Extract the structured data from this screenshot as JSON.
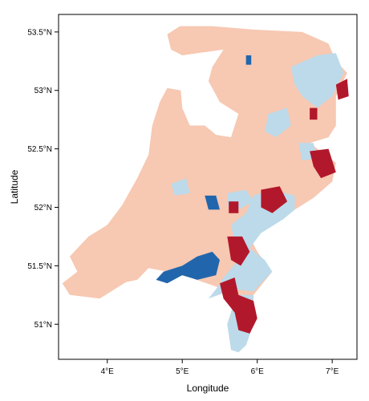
{
  "chart_data": {
    "type": "map",
    "xlabel": "Longitude",
    "ylabel": "Latitude",
    "xlim": [
      3.35,
      7.33
    ],
    "ylim": [
      50.7,
      53.65
    ],
    "x_ticks": [
      {
        "value": 4,
        "label": "4°E"
      },
      {
        "value": 5,
        "label": "5°E"
      },
      {
        "value": 6,
        "label": "6°E"
      },
      {
        "value": 7,
        "label": "7°E"
      }
    ],
    "y_ticks": [
      {
        "value": 51,
        "label": "51°N"
      },
      {
        "value": 51.5,
        "label": "51.5°N"
      },
      {
        "value": 52,
        "label": "52°N"
      },
      {
        "value": 52.5,
        "label": "52.5°N"
      },
      {
        "value": 53,
        "label": "53°N"
      },
      {
        "value": 53.5,
        "label": "53.5°N"
      }
    ],
    "grid": false,
    "legend": "none",
    "classes": [
      {
        "color": "#f7c8b2"
      },
      {
        "color": "#bcdaea"
      },
      {
        "color": "#2166ac"
      },
      {
        "color": "#b2182b"
      }
    ],
    "regions": [
      {
        "class": 0,
        "points": [
          [
            4.97,
            53.55
          ],
          [
            5.4,
            53.55
          ],
          [
            5.95,
            53.52
          ],
          [
            6.6,
            53.5
          ],
          [
            6.95,
            53.4
          ],
          [
            7.05,
            53.25
          ],
          [
            7.2,
            53.15
          ],
          [
            7.05,
            52.95
          ],
          [
            7.05,
            52.7
          ],
          [
            6.95,
            52.6
          ],
          [
            6.7,
            52.55
          ],
          [
            7.05,
            52.38
          ],
          [
            7.0,
            52.22
          ],
          [
            6.75,
            52.08
          ],
          [
            6.35,
            51.92
          ],
          [
            6.0,
            51.83
          ],
          [
            5.9,
            51.75
          ],
          [
            6.0,
            51.62
          ],
          [
            6.2,
            51.45
          ],
          [
            5.95,
            51.25
          ],
          [
            5.85,
            51.05
          ],
          [
            5.85,
            50.85
          ],
          [
            5.75,
            50.76
          ],
          [
            5.65,
            50.8
          ],
          [
            5.6,
            51.0
          ],
          [
            5.7,
            51.2
          ],
          [
            5.55,
            51.3
          ],
          [
            5.1,
            51.4
          ],
          [
            4.8,
            51.45
          ],
          [
            4.55,
            51.48
          ],
          [
            4.4,
            51.38
          ],
          [
            4.25,
            51.36
          ],
          [
            3.9,
            51.22
          ],
          [
            3.5,
            51.25
          ],
          [
            3.4,
            51.35
          ],
          [
            3.6,
            51.45
          ],
          [
            3.5,
            51.58
          ],
          [
            3.75,
            51.75
          ],
          [
            4.0,
            51.85
          ],
          [
            4.2,
            52.02
          ],
          [
            4.4,
            52.25
          ],
          [
            4.55,
            52.45
          ],
          [
            4.6,
            52.7
          ],
          [
            4.7,
            52.9
          ],
          [
            4.8,
            53.02
          ],
          [
            4.98,
            53.0
          ],
          [
            5.0,
            52.85
          ],
          [
            5.1,
            52.7
          ],
          [
            5.3,
            52.7
          ],
          [
            5.45,
            52.62
          ],
          [
            5.65,
            52.6
          ],
          [
            5.75,
            52.8
          ],
          [
            5.5,
            52.9
          ],
          [
            5.35,
            53.08
          ],
          [
            5.4,
            53.2
          ],
          [
            5.55,
            53.35
          ],
          [
            5.0,
            53.3
          ],
          [
            4.85,
            53.35
          ],
          [
            4.8,
            53.48
          ]
        ]
      },
      {
        "class": 1,
        "points": [
          [
            6.45,
            53.2
          ],
          [
            6.8,
            53.3
          ],
          [
            7.05,
            53.32
          ],
          [
            7.15,
            53.15
          ],
          [
            7.0,
            52.95
          ],
          [
            6.8,
            52.85
          ],
          [
            6.6,
            52.95
          ],
          [
            6.5,
            53.05
          ]
        ]
      },
      {
        "class": 1,
        "points": [
          [
            5.35,
            51.22
          ],
          [
            5.7,
            51.3
          ],
          [
            5.95,
            51.28
          ],
          [
            6.2,
            51.45
          ],
          [
            6.1,
            51.55
          ],
          [
            5.9,
            51.65
          ],
          [
            6.05,
            51.78
          ],
          [
            6.35,
            51.9
          ],
          [
            6.5,
            51.98
          ],
          [
            6.5,
            52.1
          ],
          [
            6.2,
            52.15
          ],
          [
            5.95,
            52.1
          ],
          [
            5.85,
            51.95
          ],
          [
            5.65,
            51.85
          ],
          [
            5.75,
            51.55
          ],
          [
            5.55,
            51.4
          ],
          [
            5.45,
            51.3
          ]
        ]
      },
      {
        "class": 1,
        "points": [
          [
            5.65,
            51.25
          ],
          [
            5.95,
            51.25
          ],
          [
            5.95,
            51.0
          ],
          [
            5.85,
            50.82
          ],
          [
            5.75,
            50.76
          ],
          [
            5.65,
            50.78
          ],
          [
            5.6,
            51.0
          ],
          [
            5.7,
            51.2
          ]
        ]
      },
      {
        "class": 1,
        "points": [
          [
            6.15,
            52.8
          ],
          [
            6.4,
            52.85
          ],
          [
            6.45,
            52.7
          ],
          [
            6.25,
            52.6
          ],
          [
            6.1,
            52.65
          ]
        ]
      },
      {
        "class": 1,
        "points": [
          [
            6.55,
            52.55
          ],
          [
            6.75,
            52.55
          ],
          [
            6.8,
            52.42
          ],
          [
            6.6,
            52.4
          ]
        ]
      },
      {
        "class": 1,
        "points": [
          [
            5.6,
            52.12
          ],
          [
            5.85,
            52.15
          ],
          [
            5.95,
            52.05
          ],
          [
            5.75,
            51.98
          ],
          [
            5.6,
            52.02
          ]
        ]
      },
      {
        "class": 1,
        "points": [
          [
            4.85,
            52.2
          ],
          [
            5.05,
            52.25
          ],
          [
            5.1,
            52.12
          ],
          [
            4.9,
            52.1
          ]
        ]
      },
      {
        "class": 2,
        "points": [
          [
            4.75,
            51.45
          ],
          [
            5.0,
            51.5
          ],
          [
            5.2,
            51.58
          ],
          [
            5.4,
            51.62
          ],
          [
            5.5,
            51.55
          ],
          [
            5.45,
            51.42
          ],
          [
            5.2,
            51.38
          ],
          [
            5.0,
            51.42
          ],
          [
            4.8,
            51.35
          ],
          [
            4.65,
            51.38
          ]
        ]
      },
      {
        "class": 2,
        "points": [
          [
            5.3,
            52.1
          ],
          [
            5.45,
            52.1
          ],
          [
            5.5,
            51.98
          ],
          [
            5.35,
            51.98
          ]
        ]
      },
      {
        "class": 2,
        "points": [
          [
            5.85,
            53.3
          ],
          [
            5.92,
            53.3
          ],
          [
            5.92,
            53.22
          ],
          [
            5.85,
            53.22
          ]
        ]
      },
      {
        "class": 3,
        "points": [
          [
            5.5,
            51.35
          ],
          [
            5.7,
            51.4
          ],
          [
            5.75,
            51.25
          ],
          [
            5.95,
            51.2
          ],
          [
            6.0,
            51.05
          ],
          [
            5.9,
            50.92
          ],
          [
            5.75,
            50.95
          ],
          [
            5.7,
            51.1
          ],
          [
            5.55,
            51.22
          ]
        ]
      },
      {
        "class": 3,
        "points": [
          [
            5.6,
            51.75
          ],
          [
            5.8,
            51.75
          ],
          [
            5.9,
            51.62
          ],
          [
            5.78,
            51.5
          ],
          [
            5.65,
            51.55
          ]
        ]
      },
      {
        "class": 3,
        "points": [
          [
            6.7,
            52.48
          ],
          [
            6.95,
            52.5
          ],
          [
            7.05,
            52.3
          ],
          [
            6.85,
            52.25
          ],
          [
            6.75,
            52.35
          ]
        ]
      },
      {
        "class": 3,
        "points": [
          [
            6.05,
            52.15
          ],
          [
            6.3,
            52.18
          ],
          [
            6.4,
            52.05
          ],
          [
            6.2,
            51.95
          ],
          [
            6.05,
            52.0
          ]
        ]
      },
      {
        "class": 3,
        "points": [
          [
            7.05,
            53.05
          ],
          [
            7.2,
            53.1
          ],
          [
            7.22,
            52.95
          ],
          [
            7.08,
            52.92
          ]
        ]
      },
      {
        "class": 3,
        "points": [
          [
            5.62,
            52.05
          ],
          [
            5.75,
            52.05
          ],
          [
            5.75,
            51.95
          ],
          [
            5.62,
            51.95
          ]
        ]
      },
      {
        "class": 3,
        "points": [
          [
            6.7,
            52.85
          ],
          [
            6.8,
            52.85
          ],
          [
            6.8,
            52.75
          ],
          [
            6.7,
            52.75
          ]
        ]
      }
    ]
  }
}
